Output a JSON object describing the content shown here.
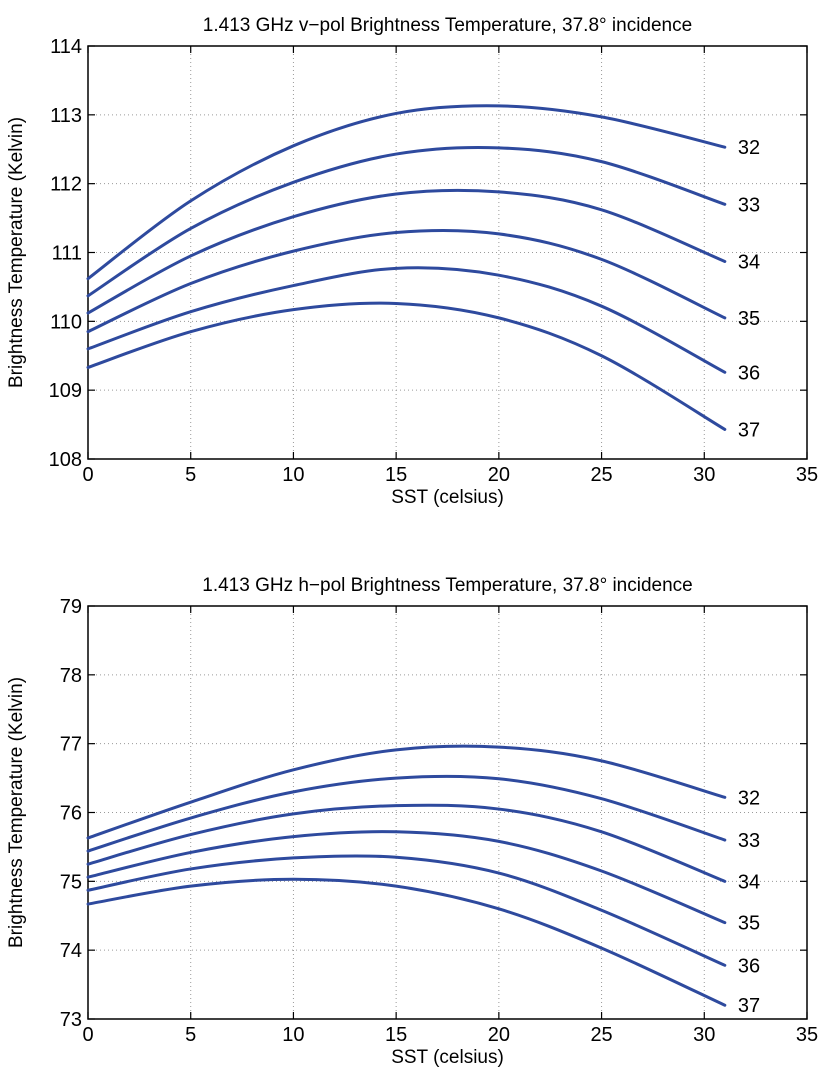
{
  "chart_data": [
    {
      "type": "line",
      "title": "1.413 GHz v−pol Brightness Temperature, 37.8°  incidence",
      "xlabel": "SST (celsius)",
      "ylabel": "Brightness Temperature (Kelvin)",
      "xlim": [
        0,
        35
      ],
      "ylim": [
        108,
        114
      ],
      "xticks": [
        "0",
        "5",
        "10",
        "15",
        "20",
        "25",
        "30",
        "35"
      ],
      "yticks": [
        "108",
        "109",
        "110",
        "111",
        "112",
        "113",
        "114"
      ],
      "grid": true,
      "line_color": "#2e4a9e",
      "x": [
        0,
        5,
        10,
        15,
        20,
        25,
        31
      ],
      "series": [
        {
          "name": "32",
          "values": [
            110.62,
            111.75,
            112.55,
            113.02,
            113.13,
            112.97,
            112.53
          ]
        },
        {
          "name": "33",
          "values": [
            110.37,
            111.35,
            112.02,
            112.43,
            112.52,
            112.32,
            111.7
          ]
        },
        {
          "name": "34",
          "values": [
            110.12,
            110.95,
            111.52,
            111.85,
            111.88,
            111.62,
            110.87
          ]
        },
        {
          "name": "35",
          "values": [
            109.85,
            110.55,
            111.02,
            111.29,
            111.27,
            110.9,
            110.05
          ]
        },
        {
          "name": "36",
          "values": [
            109.6,
            110.14,
            110.52,
            110.77,
            110.67,
            110.22,
            109.26
          ]
        },
        {
          "name": "37",
          "values": [
            109.33,
            109.85,
            110.17,
            110.26,
            110.05,
            109.5,
            108.43
          ]
        }
      ]
    },
    {
      "type": "line",
      "title": "1.413 GHz h−pol Brightness Temperature, 37.8°  incidence",
      "xlabel": "SST (celsius)",
      "ylabel": "Brightness Temperature (Kelvin)",
      "xlim": [
        0,
        35
      ],
      "ylim": [
        73,
        79
      ],
      "xticks": [
        "0",
        "5",
        "10",
        "15",
        "20",
        "25",
        "30",
        "35"
      ],
      "yticks": [
        "73",
        "74",
        "75",
        "76",
        "77",
        "78",
        "79"
      ],
      "grid": true,
      "line_color": "#2e4a9e",
      "x": [
        0,
        5,
        10,
        15,
        20,
        25,
        31
      ],
      "series": [
        {
          "name": "32",
          "values": [
            75.63,
            76.15,
            76.62,
            76.91,
            76.95,
            76.75,
            76.22
          ]
        },
        {
          "name": "33",
          "values": [
            75.44,
            75.92,
            76.3,
            76.5,
            76.49,
            76.2,
            75.6
          ]
        },
        {
          "name": "34",
          "values": [
            75.25,
            75.68,
            75.98,
            76.1,
            76.05,
            75.72,
            75.0
          ]
        },
        {
          "name": "35",
          "values": [
            75.06,
            75.42,
            75.65,
            75.72,
            75.58,
            75.15,
            74.4
          ]
        },
        {
          "name": "36",
          "values": [
            74.87,
            75.18,
            75.34,
            75.35,
            75.12,
            74.58,
            73.78
          ]
        },
        {
          "name": "37",
          "values": [
            74.67,
            74.93,
            75.03,
            74.93,
            74.6,
            74.03,
            73.2
          ]
        }
      ]
    }
  ]
}
